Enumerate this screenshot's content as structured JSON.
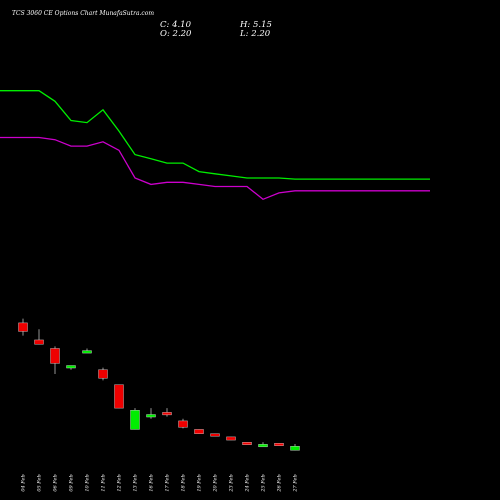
{
  "header": {
    "title": "TCS 3060 CE Options Chart MunafaSutra.com",
    "close": "C: 4.10",
    "high": "H: 5.15",
    "open": "O: 2.20",
    "low": "L: 2.20"
  },
  "chart_data": {
    "type": "candlestick",
    "categories": [
      "04 Feb",
      "05 Feb",
      "06 Feb",
      "09 Feb",
      "10 Feb",
      "11 Feb",
      "12 Feb",
      "13 Feb",
      "16 Feb",
      "17 Feb",
      "18 Feb",
      "19 Feb",
      "20 Feb",
      "23 Feb",
      "24 Feb",
      "25 Feb",
      "26 Feb",
      "27 Feb"
    ],
    "ohlc": [
      {
        "o": 62,
        "h": 64,
        "l": 56,
        "c": 58
      },
      {
        "o": 54,
        "h": 59,
        "l": 52,
        "c": 52
      },
      {
        "o": 50,
        "h": 51,
        "l": 38,
        "c": 43
      },
      {
        "o": 41,
        "h": 42,
        "l": 40,
        "c": 42
      },
      {
        "o": 48,
        "h": 50,
        "l": 48,
        "c": 49
      },
      {
        "o": 40,
        "h": 41,
        "l": 35,
        "c": 36
      },
      {
        "o": 33,
        "h": 33,
        "l": 22,
        "c": 22
      },
      {
        "o": 12,
        "h": 22,
        "l": 12,
        "c": 21
      },
      {
        "o": 18,
        "h": 22,
        "l": 17,
        "c": 19
      },
      {
        "o": 20,
        "h": 22,
        "l": 18,
        "c": 19
      },
      {
        "o": 16,
        "h": 17,
        "l": 12.5,
        "c": 13
      },
      {
        "o": 12,
        "h": 12,
        "l": 10,
        "c": 10
      },
      {
        "o": 10,
        "h": 10,
        "l": 9,
        "c": 9
      },
      {
        "o": 8.5,
        "h": 8.5,
        "l": 7,
        "c": 7
      },
      {
        "o": 6,
        "h": 6,
        "l": 5,
        "c": 5
      },
      {
        "o": 5,
        "h": 6,
        "l": 5,
        "c": 5
      },
      {
        "o": 5.5,
        "h": 5.5,
        "l": 4.5,
        "c": 4.5
      },
      {
        "o": 2.2,
        "h": 5.15,
        "l": 2.2,
        "c": 4.1
      }
    ],
    "series": [
      {
        "color": "#00ee00",
        "values": [
          171,
          171,
          166,
          157,
          156,
          162,
          152,
          141,
          139,
          137,
          137,
          133,
          132,
          131,
          130,
          130,
          130,
          129.5
        ]
      },
      {
        "color": "#cc00cc",
        "values": [
          149,
          149,
          148,
          145,
          145,
          147,
          143,
          130,
          127,
          128,
          128,
          127,
          126,
          126,
          126,
          120,
          123,
          124
        ]
      }
    ],
    "colors": {
      "up": "#00ee00",
      "down": "#ee0000",
      "background": "#000000"
    }
  }
}
